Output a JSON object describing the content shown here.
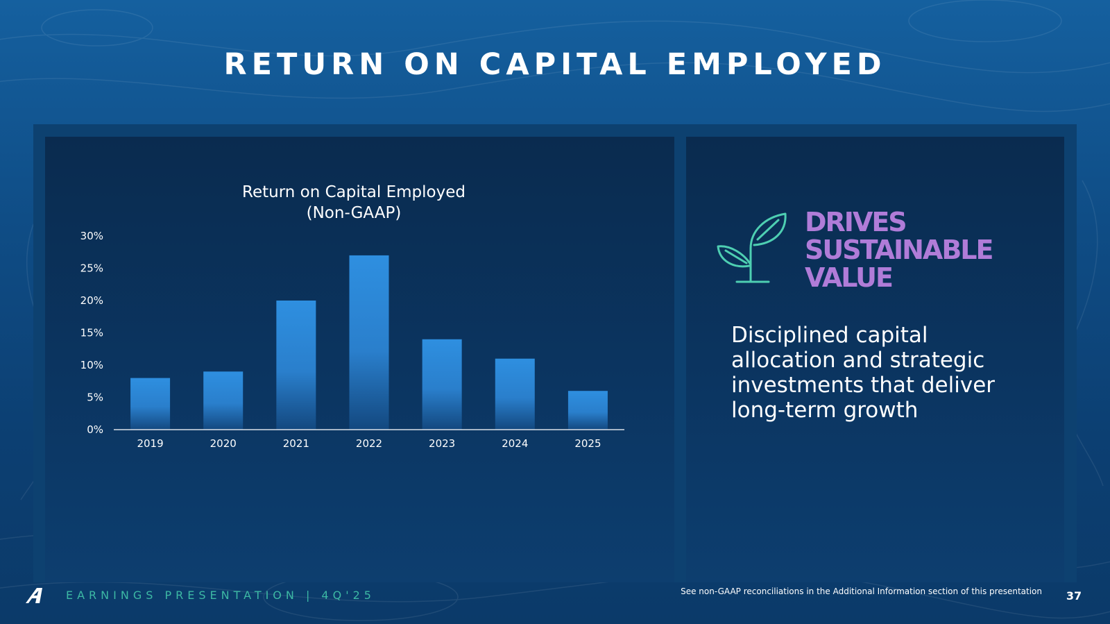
{
  "slide": {
    "title": "RETURN ON CAPITAL EMPLOYED",
    "page_number": "37"
  },
  "chart_data": {
    "type": "bar",
    "title": "Return on Capital Employed (Non-GAAP)",
    "title_lines": [
      "Return on Capital Employed",
      "(Non-GAAP)"
    ],
    "categories": [
      "2019",
      "2020",
      "2021",
      "2022",
      "2023",
      "2024",
      "2025"
    ],
    "values": [
      8,
      9,
      20,
      27,
      14,
      11,
      6
    ],
    "y_ticks": [
      0,
      5,
      10,
      15,
      20,
      25,
      30
    ],
    "y_tick_labels": [
      "0%",
      "5%",
      "10%",
      "15%",
      "20%",
      "25%",
      "30%"
    ],
    "ylim": [
      0,
      30
    ],
    "xlabel": "",
    "ylabel": "",
    "grid": false,
    "legend": "none",
    "bar_color": "#2e8fe0"
  },
  "value_panel": {
    "icon": "plant-icon",
    "headline_lines": [
      "DRIVES",
      "SUSTAINABLE",
      "VALUE"
    ],
    "description": "Disciplined capital allocation and strategic investments that deliver long-term growth"
  },
  "footer": {
    "logo": "airline-logo-icon",
    "presentation": "EARNINGS PRESENTATION | 4Q'25",
    "footnote": "See non-GAAP reconciliations in the Additional Information section of this presentation"
  },
  "colors": {
    "accent_purple": "#b07cd8",
    "accent_teal": "#3db9a4",
    "bar_blue": "#2e8fe0",
    "background": "#0f4d86"
  }
}
